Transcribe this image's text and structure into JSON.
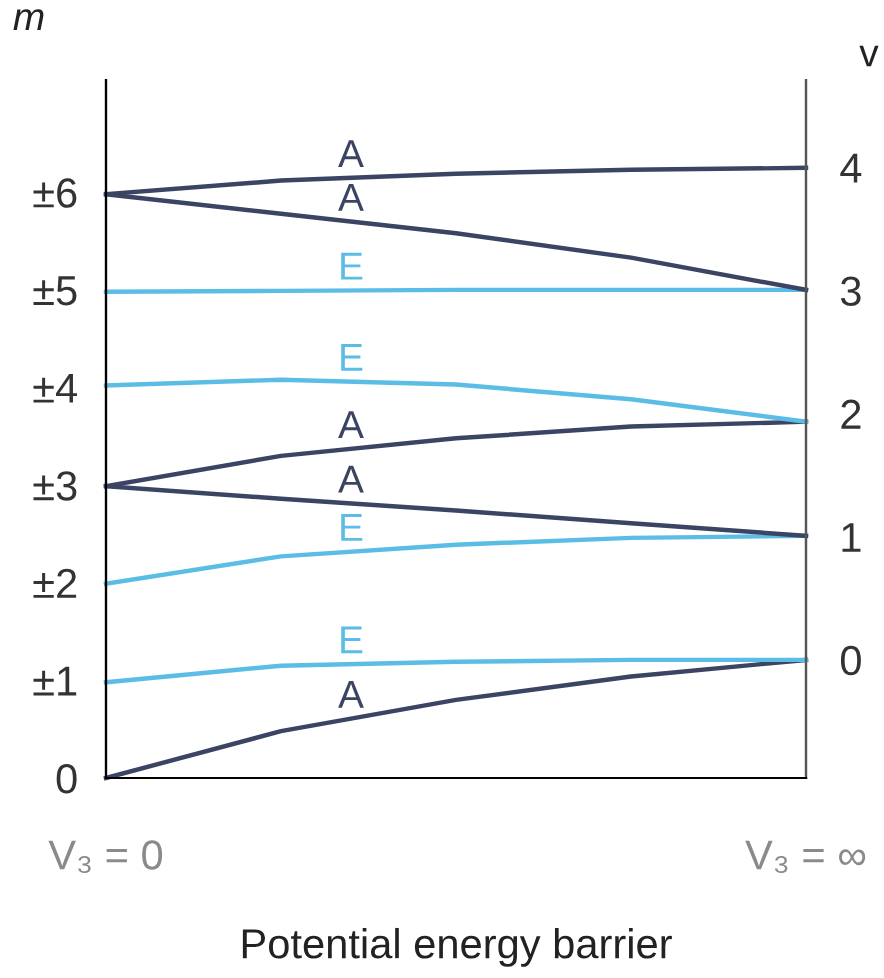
{
  "chart_data": {
    "type": "line",
    "xlabel": "Potential energy barrier",
    "ylabel": "m",
    "y2label": "v",
    "categories": [
      "V₃ = 0",
      null,
      null,
      null,
      "V₃ = ∞"
    ],
    "ylim": [
      0,
      7.15
    ],
    "yticks": [
      {
        "value": 0,
        "label": "0"
      },
      {
        "value": 1,
        "label": "±1"
      },
      {
        "value": 2,
        "label": "±2"
      },
      {
        "value": 3,
        "label": "±3"
      },
      {
        "value": 4,
        "label": "±4"
      },
      {
        "value": 5,
        "label": "±5"
      },
      {
        "value": 6,
        "label": "±6"
      }
    ],
    "y2lim": [
      -0.96,
      4.71
    ],
    "y2ticks": [
      0,
      1,
      2,
      3,
      4
    ],
    "grid": false,
    "legend": false,
    "marker": "none",
    "line_style": "solid",
    "series": [
      {
        "name": "A",
        "color": "#3b4463",
        "values": [
          0,
          0.48,
          0.8,
          1.04,
          1.21
        ]
      },
      {
        "name": "E",
        "color": "#5bbde6",
        "values": [
          0.98,
          1.15,
          1.19,
          1.21,
          1.21
        ]
      },
      {
        "name": "E",
        "color": "#5bbde6",
        "values": [
          1.99,
          2.27,
          2.39,
          2.46,
          2.48
        ]
      },
      {
        "name": "A",
        "color": "#3b4463",
        "values": [
          2.99,
          2.86,
          2.74,
          2.61,
          2.48
        ]
      },
      {
        "name": "A",
        "color": "#3b4463",
        "values": [
          2.99,
          3.3,
          3.48,
          3.6,
          3.65
        ]
      },
      {
        "name": "E",
        "color": "#5bbde6",
        "values": [
          4.02,
          4.08,
          4.03,
          3.88,
          3.65
        ]
      },
      {
        "name": "E",
        "color": "#5bbde6",
        "values": [
          4.98,
          4.99,
          5.0,
          5.0,
          5.0
        ]
      },
      {
        "name": "A",
        "color": "#3b4463",
        "values": [
          5.98,
          5.78,
          5.58,
          5.33,
          5.0
        ]
      },
      {
        "name": "A",
        "color": "#3b4463",
        "values": [
          5.98,
          6.12,
          6.19,
          6.23,
          6.25
        ]
      }
    ]
  }
}
